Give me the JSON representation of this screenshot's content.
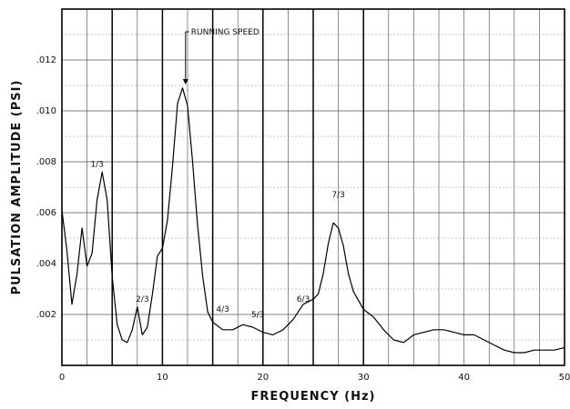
{
  "chart_data": {
    "type": "line",
    "title": "",
    "xlabel": "FREQUENCY (Hz)",
    "ylabel": "PULSATION AMPLITUDE (PSI)",
    "xlim": [
      0,
      50
    ],
    "ylim": [
      0,
      0.014
    ],
    "xticks": [
      0,
      10,
      20,
      30,
      40,
      50
    ],
    "xtick_labels": [
      "0",
      "10",
      "20",
      "30",
      "40",
      "50"
    ],
    "yticks": [
      0.002,
      0.004,
      0.006,
      0.008,
      0.01,
      0.012
    ],
    "ytick_labels": [
      ".002",
      ".004",
      ".006",
      ".008",
      ".010",
      ".012"
    ],
    "grid": true,
    "series": [
      {
        "x": [
          0,
          0.5,
          1,
          1.5,
          2,
          2.5,
          3,
          3.5,
          4,
          4.5,
          5,
          5.5,
          6,
          6.5,
          7,
          7.5,
          8,
          8.5,
          9,
          9.5,
          10,
          10.5,
          11,
          11.5,
          12,
          12.5,
          13,
          13.5,
          14,
          14.5,
          15,
          16,
          17,
          18,
          19,
          20,
          21,
          22,
          23,
          24,
          25,
          25.5,
          26,
          26.5,
          27,
          27.5,
          28,
          28.5,
          29,
          30,
          31,
          32,
          33,
          34,
          35,
          36,
          37,
          38,
          39,
          40,
          41,
          42,
          43,
          44,
          45,
          46,
          47,
          48,
          49,
          50
        ],
        "y": [
          0.0061,
          0.0045,
          0.0024,
          0.0036,
          0.0054,
          0.0039,
          0.0044,
          0.0065,
          0.0076,
          0.0065,
          0.0035,
          0.0016,
          0.001,
          0.0009,
          0.0014,
          0.0023,
          0.0012,
          0.0015,
          0.0028,
          0.0043,
          0.0046,
          0.0057,
          0.0078,
          0.0103,
          0.0109,
          0.0102,
          0.008,
          0.0055,
          0.0035,
          0.0021,
          0.0017,
          0.0014,
          0.0014,
          0.0016,
          0.0015,
          0.0013,
          0.0012,
          0.0014,
          0.0018,
          0.0024,
          0.0026,
          0.0028,
          0.0036,
          0.0048,
          0.0056,
          0.0054,
          0.0047,
          0.0036,
          0.0029,
          0.0022,
          0.0019,
          0.0014,
          0.001,
          0.0009,
          0.0012,
          0.0013,
          0.0014,
          0.0014,
          0.0013,
          0.0012,
          0.0012,
          0.001,
          0.0008,
          0.0006,
          0.0005,
          0.0005,
          0.0006,
          0.0006,
          0.0006,
          0.0007
        ]
      }
    ],
    "vertical_lines_x": [
      5,
      10,
      15,
      20,
      25,
      30
    ],
    "annotations": [
      {
        "text": "1/3",
        "x": 3.5,
        "y": 0.0078
      },
      {
        "text": "2/3",
        "x": 8.0,
        "y": 0.0025
      },
      {
        "text": "4/3",
        "x": 16.0,
        "y": 0.0021
      },
      {
        "text": "5/3",
        "x": 19.5,
        "y": 0.0019
      },
      {
        "text": "6/3",
        "x": 24.0,
        "y": 0.0025
      },
      {
        "text": "7/3",
        "x": 27.5,
        "y": 0.0066
      },
      {
        "text": "RUNNING SPEED",
        "x": 12.3,
        "y": 0.013,
        "arrow_to": [
          12.3,
          0.011
        ]
      }
    ]
  }
}
